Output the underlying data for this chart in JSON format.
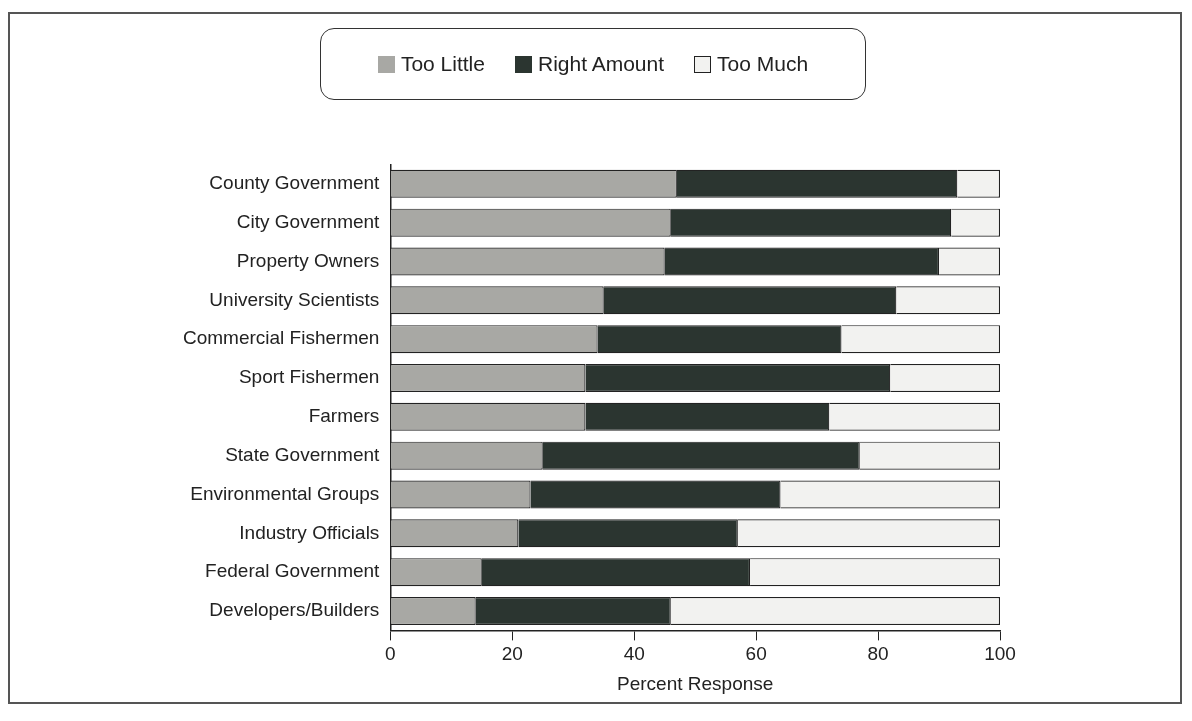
{
  "chart_data": {
    "type": "bar",
    "orientation": "horizontal",
    "stacked": true,
    "xlabel": "Percent Response",
    "categories": [
      "County Government",
      "City Government",
      "Property Owners",
      "University Scientists",
      "Commercial Fishermen",
      "Sport Fishermen",
      "Farmers",
      "State Government",
      "Environmental Groups",
      "Industry Officials",
      "Federal Government",
      "Developers/Builders"
    ],
    "series": [
      {
        "name": "Too Little",
        "color": "#a8a8a4",
        "values": [
          47,
          46,
          45,
          35,
          34,
          32,
          32,
          25,
          23,
          21,
          15,
          14
        ]
      },
      {
        "name": "Right Amount",
        "color": "#2b3530",
        "values": [
          46,
          46,
          45,
          48,
          40,
          50,
          40,
          52,
          41,
          36,
          44,
          32
        ]
      },
      {
        "name": "Too Much",
        "color": "#f2f2f0",
        "values": [
          7,
          8,
          10,
          17,
          26,
          18,
          28,
          23,
          36,
          43,
          41,
          54
        ]
      }
    ],
    "xlim": [
      0,
      100
    ],
    "xticks": [
      0,
      20,
      40,
      60,
      80,
      100
    ],
    "grid": false,
    "legend": "top"
  }
}
